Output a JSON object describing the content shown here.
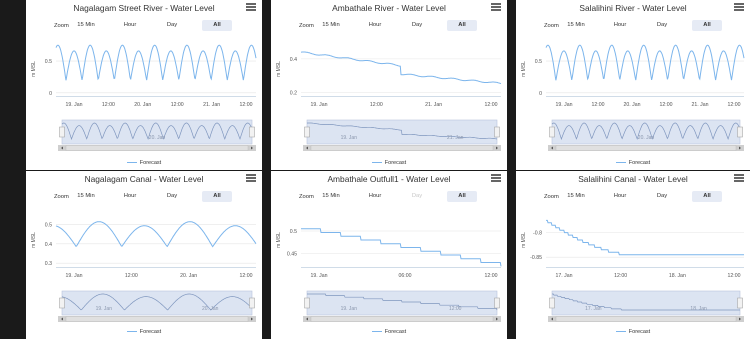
{
  "zoom": {
    "label": "Zoom",
    "buttons": [
      "15 Min",
      "Hour",
      "Day",
      "All"
    ]
  },
  "legend_label": "Forecast",
  "y_axis_label": "m MSL",
  "colors": {
    "series": "#7cb5ec",
    "navigator_fill": "#dce4f2",
    "selected_button": "#e6ebf5"
  },
  "panels": [
    {
      "title": "Nagalagam Street River - Water Level",
      "selected": "All",
      "chart_data": {
        "type": "line",
        "y_ticks": [
          "0.5",
          "0"
        ],
        "x_ticks": [
          "19. Jan",
          "12:00",
          "20. Jan",
          "12:00",
          "21. Jan",
          "12:00"
        ],
        "nav_labels": [
          "20. Jan"
        ],
        "ylim": [
          -0.05,
          0.8
        ],
        "shape": "sine",
        "params": {
          "mid": 0.45,
          "amp": 0.3,
          "cycles": 6.2,
          "phase": 1.2
        }
      }
    },
    {
      "title": "Ambathale River - Water Level",
      "selected": "All",
      "chart_data": {
        "type": "line",
        "y_ticks": [
          "0.4",
          "0.2"
        ],
        "x_ticks": [
          "19. Jan",
          "12:00",
          "21. Jan",
          "12:00"
        ],
        "nav_labels": [
          "19. Jan",
          "21. Jan"
        ],
        "ylim": [
          0.18,
          0.5
        ],
        "shape": "decline",
        "params": {
          "start": 0.44,
          "mid": 0.36,
          "drop_at": 0.5,
          "after": 0.31,
          "end": 0.255
        }
      }
    },
    {
      "title": "Salalihini River - Water Level",
      "selected": "All",
      "chart_data": {
        "type": "line",
        "y_ticks": [
          "0.5",
          "0"
        ],
        "x_ticks": [
          "19. Jan",
          "12:00",
          "20. Jan",
          "12:00",
          "21. Jan",
          "12:00"
        ],
        "nav_labels": [
          "20. Jan"
        ],
        "ylim": [
          -0.05,
          0.8
        ],
        "shape": "sine",
        "params": {
          "mid": 0.45,
          "amp": 0.3,
          "cycles": 6.2,
          "phase": 1.2
        }
      }
    },
    {
      "title": "Nagalagam Canal - Water Level",
      "selected": "All",
      "chart_data": {
        "type": "line",
        "y_ticks": [
          "0.5",
          "0.4",
          "0.3"
        ],
        "x_ticks": [
          "19. Jan",
          "12:00",
          "20. Jan",
          "12:00"
        ],
        "nav_labels": [
          "19. Jan",
          "20. Jan"
        ],
        "ylim": [
          0.28,
          0.56
        ],
        "shape": "sine",
        "params": {
          "mid": 0.445,
          "amp": 0.07,
          "cycles": 2.2,
          "phase": -1.4
        }
      }
    },
    {
      "title": "Ambathale Outfull1 - Water Level",
      "selected": "All",
      "disabled": "Day",
      "chart_data": {
        "type": "line",
        "y_ticks": [
          "0.5",
          "0.45"
        ],
        "x_ticks": [
          "19. Jan",
          "06:00",
          "12:00"
        ],
        "nav_labels": [
          "19. Jan",
          "12:00"
        ],
        "ylim": [
          0.42,
          0.54
        ],
        "shape": "steps",
        "params": {
          "start": 0.505,
          "end": 0.43,
          "steps": 10
        }
      }
    },
    {
      "title": "Salalihini Canal - Water Level",
      "selected": "All",
      "chart_data": {
        "type": "line",
        "y_ticks": [
          "-0.8",
          "-0.85"
        ],
        "x_ticks": [
          "17. Jan",
          "12:00",
          "18. Jan",
          "12:00"
        ],
        "nav_labels": [
          "17. Jan",
          "18. Jan"
        ],
        "ylim": [
          -0.87,
          -0.76
        ],
        "shape": "fall",
        "params": {
          "start": -0.775,
          "end": -0.845,
          "flat_from": 0.42
        }
      }
    }
  ]
}
